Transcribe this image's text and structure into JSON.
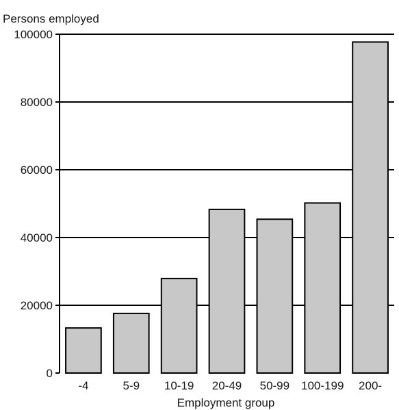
{
  "chart_data": {
    "type": "bar",
    "title": "",
    "ylabel": "Persons employed",
    "xlabel": "Employment group",
    "categories": [
      "-4",
      "5-9",
      "10-19",
      "20-49",
      "50-99",
      "100-199",
      "200-"
    ],
    "values": [
      13300,
      17600,
      27900,
      48300,
      45400,
      50200,
      97700
    ],
    "ylim": [
      0,
      100000
    ],
    "yticks": [
      0,
      20000,
      40000,
      60000,
      80000,
      100000
    ],
    "ytick_labels": [
      "0",
      "20000",
      "40000",
      "60000",
      "80000",
      "100000"
    ],
    "grid": true,
    "legend": "none",
    "bar_color": "#c8c8c8",
    "edge_color": "#000000"
  }
}
